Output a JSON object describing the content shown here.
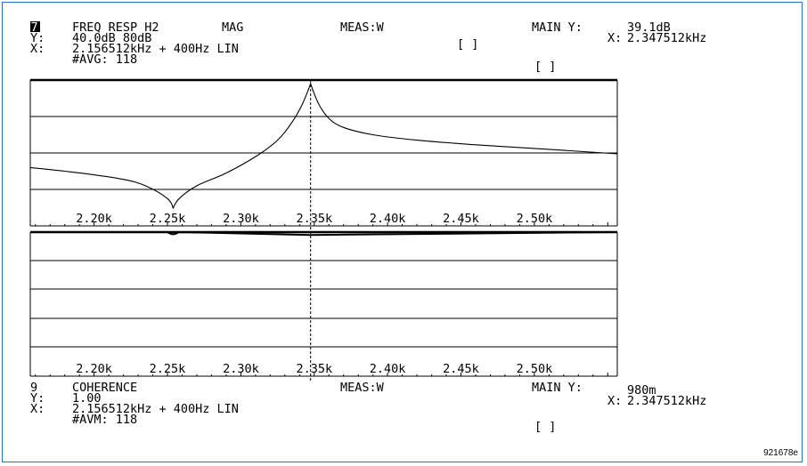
{
  "figure_id": "921678e",
  "colors": {
    "frame": "#2a72c8",
    "trace": "#000000"
  },
  "top_panel": {
    "channel": "7",
    "measurement": "FREQ RESP H2",
    "mode": "MAG",
    "meas": "MEAS:W",
    "main_y": "MAIN Y:",
    "marker_y_value": "39.1dB",
    "y_line": "40.0dB  80dB",
    "bracket_1": "[ ]",
    "x_axis_label": "X:",
    "marker_x_value": "2.347512kHz",
    "x_line": "2.156512kHz + 400Hz  LIN",
    "avg": "#AVG: 118",
    "bracket_2": "[ ]"
  },
  "bottom_panel": {
    "channel": "9",
    "measurement": "COHERENCE",
    "meas": "MEAS:W",
    "main_y": "MAIN Y:",
    "marker_y_value": "980m",
    "y_line": "1.00",
    "x_axis_label": "X:",
    "marker_x_value": "2.347512kHz",
    "x_line": "2.156512kHz + 400Hz  LIN",
    "avg": "#AVM: 118",
    "bracket": "[ ]"
  },
  "tick_labels": [
    "2.20k",
    "2.25k",
    "2.30k",
    "2.35k",
    "2.40k",
    "2.45k",
    "2.50k"
  ],
  "chart_data": [
    {
      "type": "line",
      "name": "FREQ RESP H2 MAG",
      "x_unit": "kHz",
      "xlim": [
        2.156512,
        2.556512
      ],
      "ylabel_range": "40.0dB 80dB",
      "ylim": [
        -40,
        40
      ],
      "grid": true,
      "x": [
        2.156512,
        2.18,
        2.2,
        2.22,
        2.235,
        2.25,
        2.2538,
        2.258,
        2.27,
        2.29,
        2.31,
        2.325,
        2.335,
        2.342,
        2.3475,
        2.353,
        2.36,
        2.37,
        2.39,
        2.42,
        2.46,
        2.5,
        2.556512
      ],
      "y": [
        -8,
        -10,
        -12,
        -14.5,
        -18,
        -25,
        -30.5,
        -25,
        -18,
        -11,
        -2,
        7,
        17,
        27,
        38,
        27,
        19,
        14,
        10,
        7,
        4.5,
        2.5,
        -0.5
      ],
      "marker": {
        "x": 2.347512,
        "y": 39.1
      }
    },
    {
      "type": "line",
      "name": "COHERENCE",
      "x_unit": "kHz",
      "xlim": [
        2.156512,
        2.556512
      ],
      "ylim": [
        0,
        1.0
      ],
      "grid": true,
      "x": [
        2.156512,
        2.25,
        2.2538,
        2.258,
        2.3475,
        2.556512
      ],
      "y": [
        1.0,
        1.0,
        0.985,
        1.0,
        0.98,
        1.0
      ],
      "marker": {
        "x": 2.347512,
        "y": 0.98
      }
    }
  ]
}
